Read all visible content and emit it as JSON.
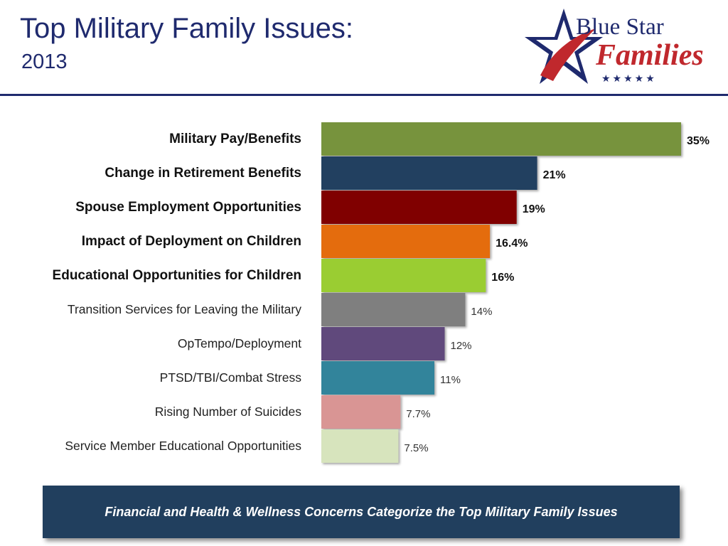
{
  "header": {
    "title": "Top Military Family Issues:",
    "subtitle": "2013"
  },
  "logo": {
    "line1": "Blue Star",
    "line2": "Families",
    "stars": "★★★★★",
    "icon": "star-logo-icon"
  },
  "chart_data": {
    "type": "bar",
    "orientation": "horizontal",
    "title": "",
    "xlabel": "",
    "ylabel": "",
    "xlim": [
      0,
      35
    ],
    "grid": false,
    "legend": "none",
    "categories": [
      "Military Pay/Benefits",
      "Change in Retirement Benefits",
      "Spouse Employment Opportunities",
      "Impact of Deployment on Children",
      "Educational Opportunities for Children",
      "Transition Services for Leaving the Military",
      "OpTempo/Deployment",
      "PTSD/TBI/Combat Stress",
      "Rising Number of Suicides",
      "Service Member Educational Opportunities"
    ],
    "values": [
      35,
      21,
      19,
      16.4,
      16,
      14,
      12,
      11,
      7.7,
      7.5
    ],
    "value_labels": [
      "35%",
      "21%",
      "19%",
      "16.4%",
      "16%",
      "14%",
      "12%",
      "11%",
      "7.7%",
      "7.5%"
    ],
    "bold_labels": [
      true,
      true,
      true,
      true,
      true,
      false,
      false,
      false,
      false,
      false
    ],
    "colors": [
      "#77933c",
      "#243f60",
      "#800000",
      "#e46c0a",
      "#9acd32",
      "#7f7f7f",
      "#604a7b",
      "#31849b",
      "#d99594",
      "#d7e4bd"
    ]
  },
  "banner": {
    "text": "Financial and Health & Wellness Concerns Categorize the Top Military Family Issues"
  }
}
